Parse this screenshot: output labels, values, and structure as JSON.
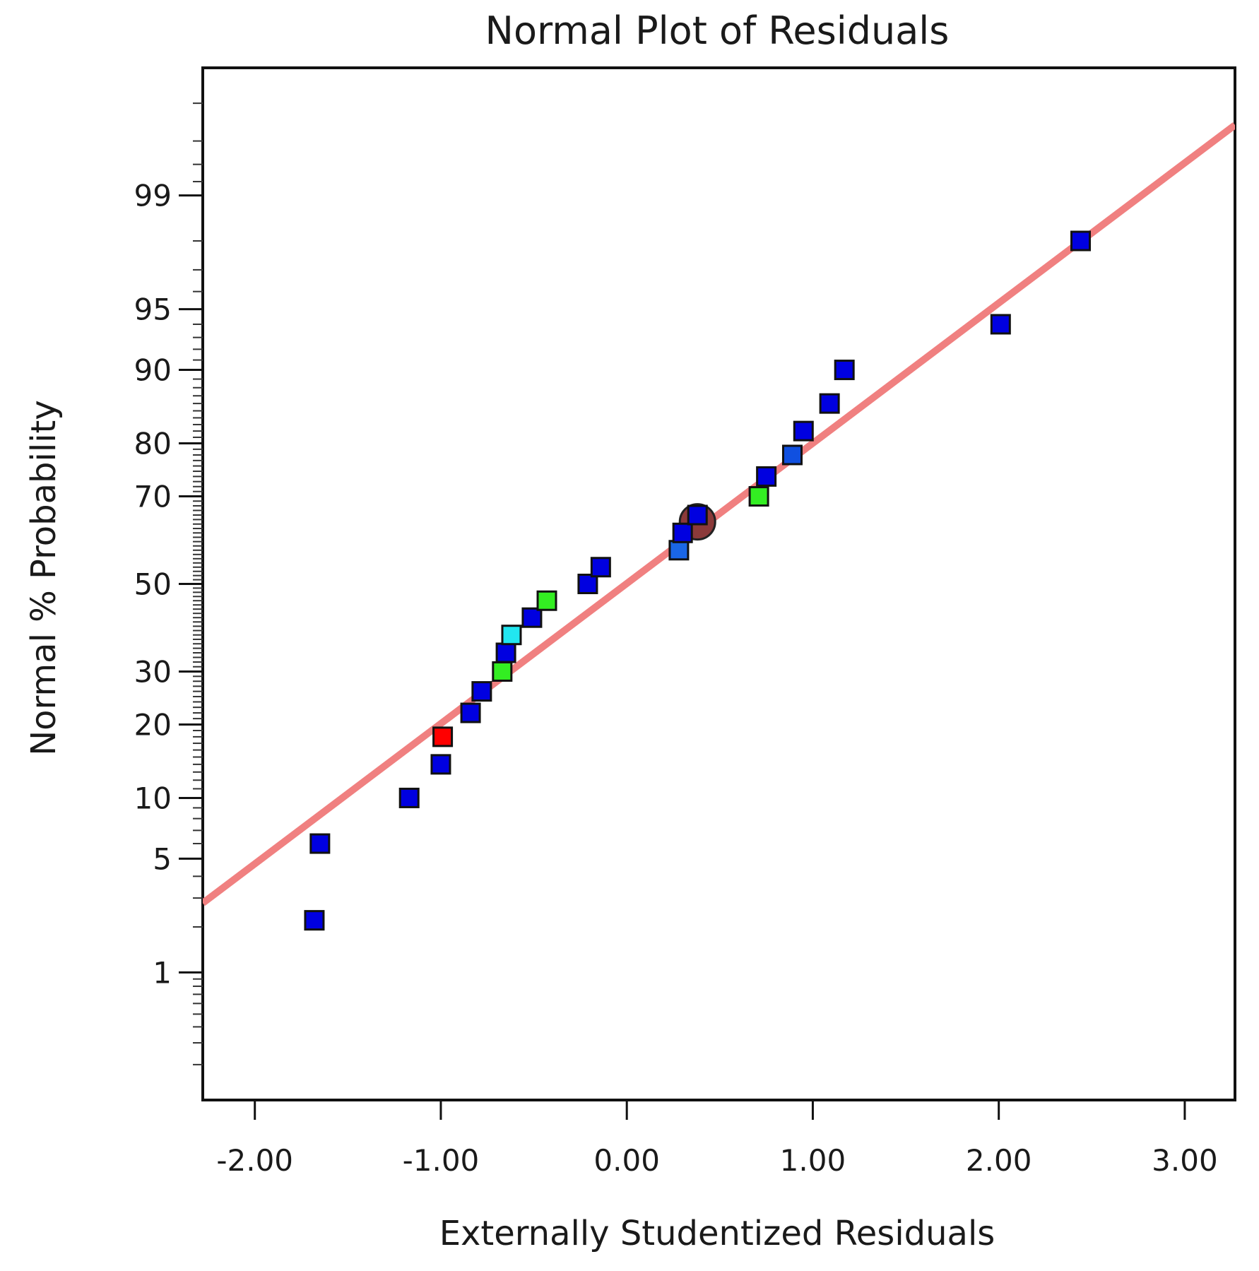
{
  "chart_data": {
    "type": "scatter",
    "title": "Normal Plot of Residuals",
    "xlabel": "Externally Studentized Residuals",
    "ylabel": "Normal % Probability",
    "xlim": [
      -2.28,
      3.27
    ],
    "ylim": [
      0.1,
      99.9
    ],
    "y_scale": "normal-probability",
    "x_ticks": [
      {
        "value": -2,
        "label": "-2.00"
      },
      {
        "value": -1,
        "label": "-1.00"
      },
      {
        "value": 0,
        "label": "0.00"
      },
      {
        "value": 1,
        "label": "1.00"
      },
      {
        "value": 2,
        "label": "2.00"
      },
      {
        "value": 3,
        "label": "3.00"
      }
    ],
    "y_ticks": [
      {
        "value": 1,
        "label": "1"
      },
      {
        "value": 5,
        "label": "5"
      },
      {
        "value": 10,
        "label": "10"
      },
      {
        "value": 20,
        "label": "20"
      },
      {
        "value": 30,
        "label": "30"
      },
      {
        "value": 50,
        "label": "50"
      },
      {
        "value": 70,
        "label": "70"
      },
      {
        "value": 80,
        "label": "80"
      },
      {
        "value": 90,
        "label": "90"
      },
      {
        "value": 95,
        "label": "95"
      },
      {
        "value": 99,
        "label": "99"
      }
    ],
    "reference_line": {
      "color": "#f08080",
      "x1": -2.28,
      "p1": 2.8,
      "x2": 3.27,
      "p2": 99.7
    },
    "series": [
      {
        "name": "residuals",
        "points": [
          {
            "x": -1.68,
            "p": 2.2,
            "color": "#0000e0"
          },
          {
            "x": -1.65,
            "p": 6.0,
            "color": "#0000e0"
          },
          {
            "x": -1.17,
            "p": 10.0,
            "color": "#0000e0"
          },
          {
            "x": -1.0,
            "p": 14.0,
            "color": "#0000e0"
          },
          {
            "x": -0.99,
            "p": 18.0,
            "color": "#ff0000"
          },
          {
            "x": -0.84,
            "p": 22.0,
            "color": "#0000e0"
          },
          {
            "x": -0.78,
            "p": 26.0,
            "color": "#0000e0"
          },
          {
            "x": -0.67,
            "p": 30.0,
            "color": "#33ee22"
          },
          {
            "x": -0.65,
            "p": 34.0,
            "color": "#0000e0"
          },
          {
            "x": -0.62,
            "p": 38.0,
            "color": "#22e6f0"
          },
          {
            "x": -0.51,
            "p": 42.0,
            "color": "#0000e0"
          },
          {
            "x": -0.43,
            "p": 46.0,
            "color": "#33ee22"
          },
          {
            "x": -0.21,
            "p": 50.0,
            "color": "#0000e0"
          },
          {
            "x": -0.14,
            "p": 54.0,
            "color": "#0000e0"
          },
          {
            "x": 0.28,
            "p": 58.0,
            "color": "#1a66e6"
          },
          {
            "x": 0.3,
            "p": 62.0,
            "color": "#0000e0"
          },
          {
            "x": 0.38,
            "p": 66.0,
            "color": "#0000e0"
          },
          {
            "x": 0.71,
            "p": 70.0,
            "color": "#33ee22"
          },
          {
            "x": 0.75,
            "p": 74.0,
            "color": "#0000e0"
          },
          {
            "x": 0.89,
            "p": 78.0,
            "color": "#1050e0"
          },
          {
            "x": 0.95,
            "p": 82.0,
            "color": "#0000e0"
          },
          {
            "x": 1.09,
            "p": 86.0,
            "color": "#0000e0"
          },
          {
            "x": 1.17,
            "p": 90.0,
            "color": "#0000e0"
          },
          {
            "x": 2.01,
            "p": 94.0,
            "color": "#0000e0"
          },
          {
            "x": 2.44,
            "p": 98.0,
            "color": "#0000e0"
          }
        ]
      }
    ],
    "highlight": {
      "x": 0.38,
      "p": 64.5,
      "color": "#8b3a3a"
    }
  }
}
